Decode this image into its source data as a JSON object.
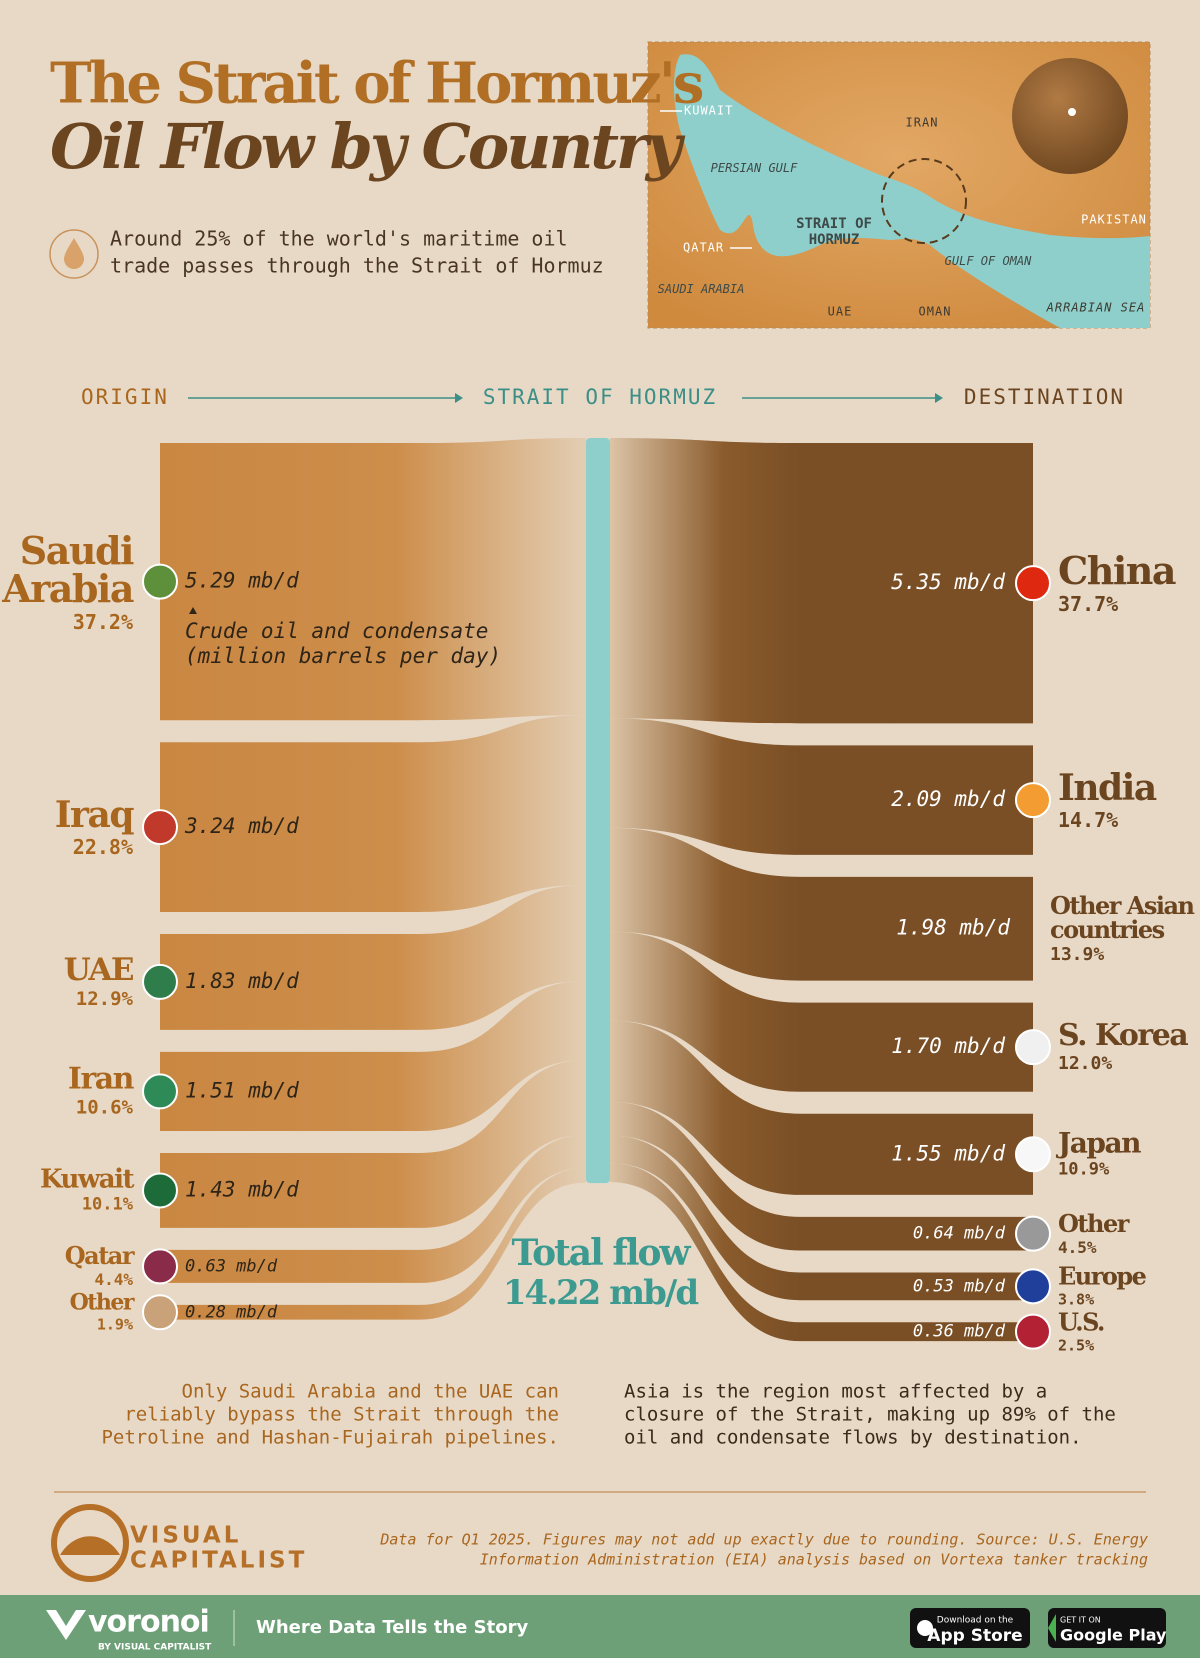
{
  "header": {
    "title_line1": "The Strait of Hormuz's",
    "title_line2": "Oil Flow by Country",
    "subtitle_lines": [
      "Around 25% of the world's maritime oil",
      "trade passes through the Strait of Hormuz"
    ]
  },
  "map": {
    "labels": [
      "KUWAIT",
      "IRAN",
      "PERSIAN GULF",
      "QATAR",
      "STRAIT OF HORMUZ",
      "SAUDI ARABIA",
      "UAE",
      "OMAN",
      "GULF OF OMAN",
      "PAKISTAN",
      "ARRABIAN SEA"
    ]
  },
  "chart_data": {
    "type": "sankey",
    "stage_labels": [
      "ORIGIN",
      "STRAIT OF HORMUZ",
      "DESTINATION"
    ],
    "annotation_lines": [
      "Crude oil and condensate",
      "(million barrels per day)"
    ],
    "origins": {
      "categories": [
        "Saudi Arabia",
        "Iraq",
        "UAE",
        "Iran",
        "Kuwait",
        "Qatar",
        "Other"
      ],
      "values": [
        5.29,
        3.24,
        1.83,
        1.51,
        1.43,
        0.63,
        0.28
      ],
      "value_labels": [
        "5.29 mb/d",
        "3.24 mb/d",
        "1.83 mb/d",
        "1.51 mb/d",
        "1.43 mb/d",
        "0.63 mb/d",
        "0.28 mb/d"
      ],
      "shares": [
        37.2,
        22.8,
        12.9,
        10.6,
        10.1,
        4.4,
        1.9
      ],
      "share_labels": [
        "37.2%",
        "22.8%",
        "12.9%",
        "10.6%",
        "10.1%",
        "4.4%",
        "1.9%"
      ]
    },
    "destinations": {
      "categories": [
        "China",
        "India",
        "Other Asian countries",
        "S. Korea",
        "Japan",
        "Other",
        "Europe",
        "U.S."
      ],
      "values": [
        5.35,
        2.09,
        1.98,
        1.7,
        1.55,
        0.64,
        0.53,
        0.36
      ],
      "value_labels": [
        "5.35 mb/d",
        "2.09 mb/d",
        "1.98 mb/d",
        "1.70 mb/d",
        "1.55 mb/d",
        "0.64 mb/d",
        "0.53 mb/d",
        "0.36 mb/d"
      ],
      "shares": [
        37.7,
        14.7,
        13.9,
        12.0,
        10.9,
        4.5,
        3.8,
        2.5
      ],
      "share_labels": [
        "37.7%",
        "14.7%",
        "13.9%",
        "12.0%",
        "10.9%",
        "4.5%",
        "3.8%",
        "2.5%"
      ]
    },
    "total": {
      "label": "Total flow",
      "value": 14.22,
      "value_label": "14.22 mb/d"
    }
  },
  "notes": {
    "left": [
      "Only Saudi Arabia and the UAE can",
      "reliably bypass the Strait through the",
      "Petroline and Hashan-Fujairah pipelines."
    ],
    "right": [
      "Asia is the region most affected by a",
      "closure of the Strait, making up 89% of the",
      "oil and condensate flows by destination."
    ]
  },
  "source_lines": [
    "Data for Q1 2025. Figures may not add up exactly due to rounding. Source: U.S. Energy",
    "Information Administration (EIA) analysis based on Vortexa tanker tracking"
  ],
  "brand": [
    "VISUAL",
    "CAPITALIST"
  ],
  "footer": {
    "logo": "voronoi",
    "by": "BY VISUAL CAPITALIST",
    "tagline": "Where Data Tells the Story",
    "app_store": [
      "Download on the",
      "App Store"
    ],
    "google_play": [
      "GET IT ON",
      "Google Play"
    ]
  }
}
